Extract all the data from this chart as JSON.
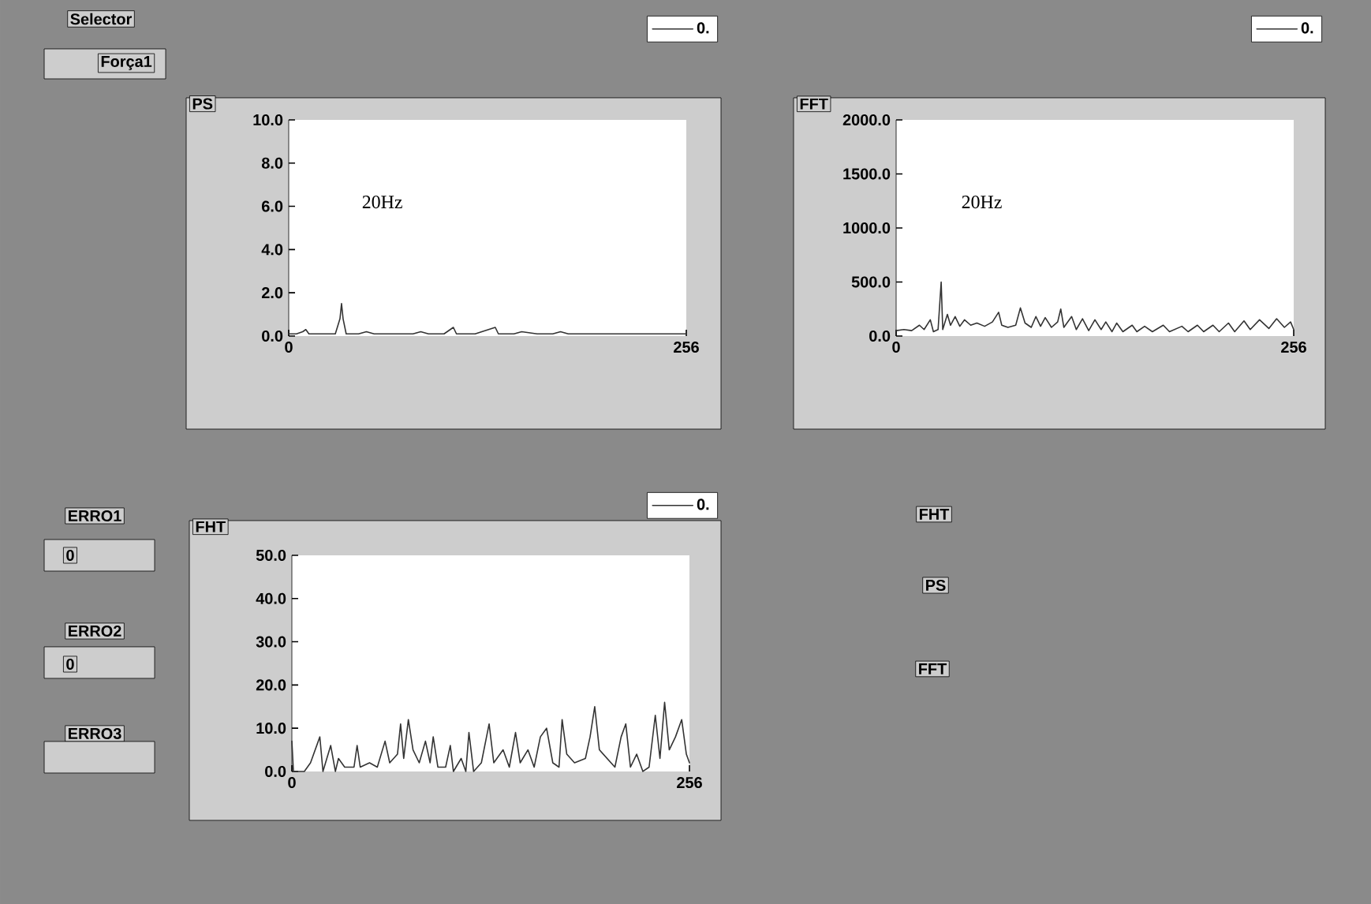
{
  "chart_data": [
    {
      "type": "line",
      "title": "PS",
      "annotations": [
        "20Hz"
      ],
      "legend": "top right",
      "marker": "none",
      "line_style": "solid",
      "xlim": [
        0,
        256
      ],
      "xticks": [
        0,
        256
      ],
      "ylim": [
        0,
        10
      ],
      "yticks": [
        {
          "value": 0,
          "label": "0.0"
        },
        {
          "value": 2,
          "label": "2.0"
        },
        {
          "value": 4,
          "label": "4.0"
        },
        {
          "value": 6,
          "label": "6.0"
        },
        {
          "value": 8,
          "label": "8.0"
        },
        {
          "value": 10,
          "label": "10.0"
        }
      ],
      "series": [
        {
          "name": "0.",
          "color": "#333333",
          "x": [
            0,
            5,
            9,
            11,
            13,
            20,
            30,
            33,
            34,
            35,
            37,
            45,
            50,
            55,
            70,
            80,
            85,
            90,
            100,
            106,
            108,
            120,
            133,
            135,
            145,
            150,
            160,
            170,
            175,
            180,
            200,
            210,
            220,
            232,
            240,
            250,
            256
          ],
          "values": [
            0.1,
            0.1,
            0.2,
            0.3,
            0.1,
            0.1,
            0.1,
            0.8,
            1.5,
            0.8,
            0.1,
            0.1,
            0.2,
            0.1,
            0.1,
            0.1,
            0.2,
            0.1,
            0.1,
            0.4,
            0.1,
            0.1,
            0.4,
            0.1,
            0.1,
            0.2,
            0.1,
            0.1,
            0.2,
            0.1,
            0.1,
            0.1,
            0.1,
            0.1,
            0.1,
            0.1,
            0.1
          ]
        }
      ]
    },
    {
      "type": "line",
      "title": "FFT",
      "annotations": [
        "20Hz"
      ],
      "legend": "top right",
      "marker": "none",
      "line_style": "solid",
      "xlim": [
        0,
        256
      ],
      "xticks": [
        0,
        256
      ],
      "ylim": [
        0,
        2000
      ],
      "yticks": [
        {
          "value": 0,
          "label": "0.0"
        },
        {
          "value": 500,
          "label": "500.0"
        },
        {
          "value": 1000,
          "label": "1000.0"
        },
        {
          "value": 1500,
          "label": "1500.0"
        },
        {
          "value": 2000,
          "label": "2000.0"
        }
      ],
      "series": [
        {
          "name": "0.",
          "color": "#333333",
          "x": [
            0,
            5,
            10,
            15,
            18,
            22,
            24,
            27,
            29,
            30,
            33,
            35,
            38,
            41,
            44,
            48,
            52,
            57,
            62,
            66,
            68,
            72,
            77,
            80,
            83,
            87,
            90,
            93,
            96,
            100,
            104,
            106,
            108,
            113,
            116,
            120,
            124,
            128,
            132,
            135,
            139,
            142,
            146,
            152,
            155,
            160,
            165,
            172,
            176,
            184,
            188,
            194,
            198,
            204,
            208,
            214,
            218,
            224,
            228,
            234,
            240,
            245,
            250,
            254,
            256
          ],
          "values": [
            50,
            60,
            50,
            100,
            60,
            150,
            40,
            60,
            500,
            60,
            200,
            100,
            180,
            90,
            150,
            100,
            120,
            90,
            130,
            220,
            100,
            80,
            100,
            260,
            120,
            80,
            180,
            90,
            170,
            80,
            130,
            250,
            80,
            180,
            60,
            160,
            50,
            150,
            60,
            130,
            40,
            120,
            40,
            100,
            40,
            90,
            40,
            100,
            40,
            90,
            40,
            100,
            40,
            100,
            40,
            120,
            40,
            140,
            60,
            150,
            70,
            160,
            80,
            130,
            60
          ]
        }
      ]
    },
    {
      "type": "line",
      "title": "FHT",
      "legend": "top right",
      "marker": "none",
      "line_style": "solid",
      "xlim": [
        0,
        256
      ],
      "xticks": [
        0,
        256
      ],
      "ylim": [
        0,
        50
      ],
      "yticks": [
        {
          "value": 0,
          "label": "0.0"
        },
        {
          "value": 10,
          "label": "10.0"
        },
        {
          "value": 20,
          "label": "20.0"
        },
        {
          "value": 30,
          "label": "30.0"
        },
        {
          "value": 40,
          "label": "40.0"
        },
        {
          "value": 50,
          "label": "50.0"
        }
      ],
      "series": [
        {
          "name": "0.",
          "color": "#333333",
          "x": [
            0,
            1,
            8,
            12,
            15,
            18,
            20,
            25,
            28,
            30,
            34,
            40,
            42,
            44,
            50,
            55,
            60,
            63,
            68,
            70,
            72,
            75,
            78,
            82,
            86,
            89,
            91,
            94,
            99,
            102,
            104,
            109,
            112,
            114,
            117,
            122,
            127,
            130,
            136,
            140,
            144,
            147,
            152,
            156,
            160,
            164,
            168,
            172,
            174,
            177,
            182,
            189,
            192,
            195,
            198,
            203,
            208,
            212,
            215,
            218,
            222,
            226,
            230,
            234,
            237,
            240,
            243,
            247,
            251,
            254,
            256
          ],
          "values": [
            7,
            0,
            0,
            2,
            5,
            8,
            0,
            6,
            0,
            3,
            1,
            1,
            6,
            1,
            2,
            1,
            7,
            2,
            4,
            11,
            3,
            12,
            5,
            2,
            7,
            2,
            8,
            1,
            1,
            6,
            0,
            3,
            0,
            9,
            0,
            2,
            11,
            2,
            5,
            1,
            9,
            2,
            5,
            1,
            8,
            10,
            2,
            1,
            12,
            4,
            2,
            3,
            8,
            15,
            5,
            3,
            1,
            8,
            11,
            1,
            4,
            0,
            1,
            13,
            3,
            16,
            5,
            8,
            12,
            4,
            2
          ]
        }
      ]
    },
    {
      "type": "other",
      "annotations": [
        "Selector",
        "Força1",
        "ERRO1",
        "0",
        "ERRO2",
        "0",
        "ERRO3",
        "FHT",
        "PS",
        "FFT"
      ]
    }
  ]
}
